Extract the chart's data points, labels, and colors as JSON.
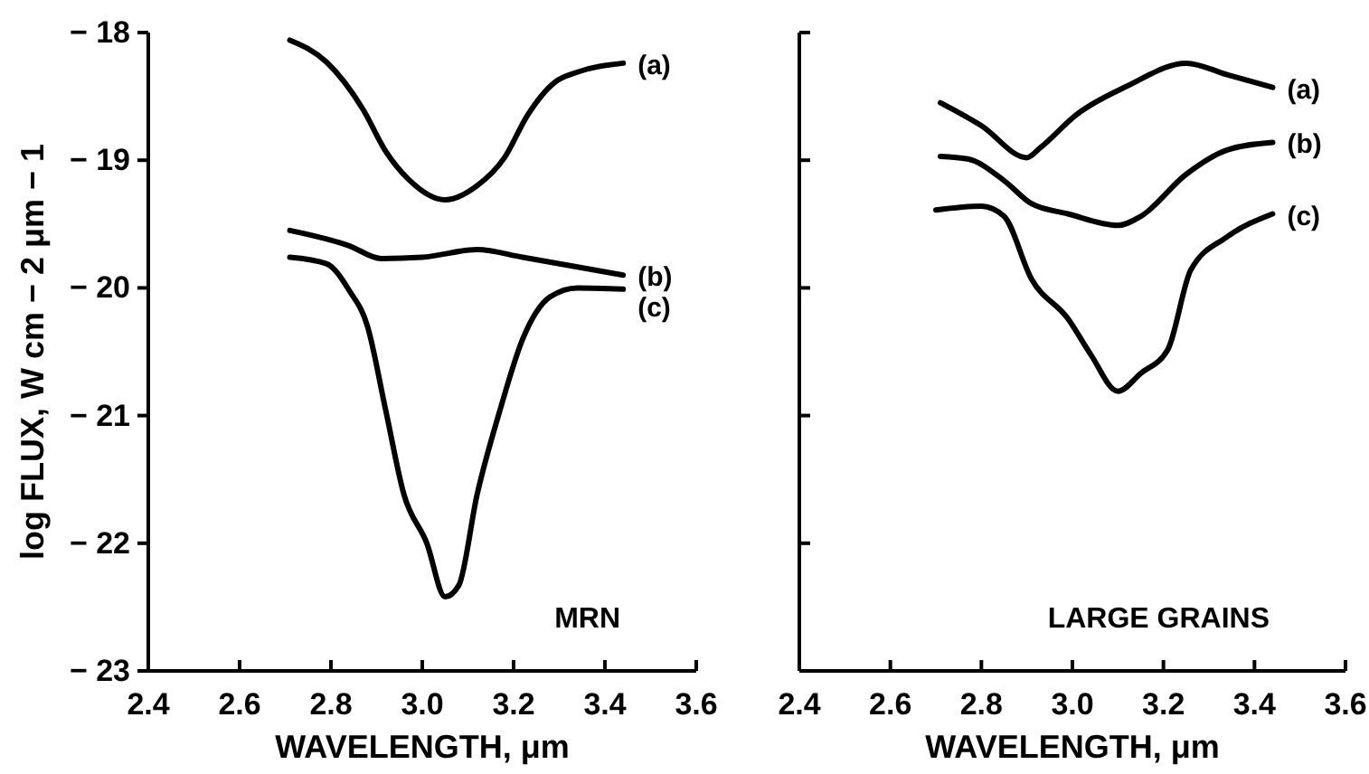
{
  "chart_data": [
    {
      "type": "line",
      "xlabel": "WAVELENGTH, μm",
      "ylabel": "log FLUX, W cm − 2 μm − 1",
      "xlim": [
        2.4,
        3.6
      ],
      "ylim": [
        -23,
        -18
      ],
      "xticks": [
        2.4,
        2.6,
        2.8,
        {
          "value": 3,
          "label": "3.0"
        },
        3.2,
        3.4,
        3.6
      ],
      "yticks": [
        {
          "value": -23,
          "label": "− 23"
        },
        {
          "value": -22,
          "label": "− 22"
        },
        {
          "value": -21,
          "label": "− 21"
        },
        {
          "value": -20,
          "label": "− 20"
        },
        {
          "value": -19,
          "label": "− 19"
        },
        {
          "value": -18,
          "label": "− 18"
        }
      ],
      "annotations": [
        "MRN"
      ],
      "series": [
        {
          "name": "(a)",
          "color": "#000000",
          "x": [
            2.71,
            2.79,
            2.87,
            2.92,
            2.97,
            3.05,
            3.12,
            3.18,
            3.23,
            3.29,
            3.34,
            3.44
          ],
          "values": [
            -18.06,
            -18.23,
            -18.6,
            -18.93,
            -19.15,
            -19.31,
            -19.2,
            -18.98,
            -18.65,
            -18.39,
            -18.31,
            -18.24
          ]
        },
        {
          "name": "(b)",
          "color": "#000000",
          "x": [
            2.71,
            2.84,
            2.91,
            3.0,
            3.12,
            3.22,
            3.44
          ],
          "values": [
            -19.55,
            -19.67,
            -19.77,
            -19.76,
            -19.7,
            -19.76,
            -19.9
          ]
        },
        {
          "name": "(c)",
          "color": "#000000",
          "x": [
            2.71,
            2.79,
            2.84,
            2.88,
            2.92,
            2.96,
            3.01,
            3.05,
            3.08,
            3.12,
            3.17,
            3.22,
            3.28,
            3.34,
            3.44
          ],
          "values": [
            -19.76,
            -19.81,
            -20.02,
            -20.3,
            -20.96,
            -21.62,
            -22.0,
            -22.42,
            -22.33,
            -21.62,
            -20.96,
            -20.4,
            -20.07,
            -20.0,
            -20.01
          ]
        }
      ]
    },
    {
      "type": "line",
      "xlabel": "WAVELENGTH, μm",
      "xlim": [
        2.4,
        3.6
      ],
      "ylim": [
        -23,
        -18
      ],
      "xticks": [
        2.4,
        2.6,
        2.8,
        {
          "value": 3,
          "label": "3.0"
        },
        3.2,
        3.4,
        3.6
      ],
      "yticks": [
        -23,
        -22,
        -21,
        -20,
        -19,
        -18
      ],
      "tick_labels": "x",
      "annotations": [
        "LARGE GRAINS"
      ],
      "series": [
        {
          "name": "(a)",
          "color": "#000000",
          "x": [
            2.71,
            2.8,
            2.9,
            2.93,
            3.01,
            3.12,
            3.25,
            3.34,
            3.44
          ],
          "values": [
            -18.55,
            -18.73,
            -18.98,
            -18.9,
            -18.64,
            -18.42,
            -18.24,
            -18.33,
            -18.43
          ]
        },
        {
          "name": "(b)",
          "color": "#000000",
          "x": [
            2.71,
            2.77,
            2.85,
            2.91,
            2.99,
            3.1,
            3.15,
            3.25,
            3.34,
            3.44
          ],
          "values": [
            -18.97,
            -18.99,
            -19.16,
            -19.34,
            -19.42,
            -19.51,
            -19.44,
            -19.11,
            -18.92,
            -18.86
          ]
        },
        {
          "name": "(c)",
          "color": "#000000",
          "x": [
            2.7,
            2.8,
            2.85,
            2.91,
            2.99,
            3.04,
            3.1,
            3.15,
            3.21,
            3.26,
            3.34,
            3.44
          ],
          "values": [
            -19.39,
            -19.36,
            -19.44,
            -19.93,
            -20.24,
            -20.52,
            -20.81,
            -20.67,
            -20.48,
            -19.86,
            -19.6,
            -19.42
          ]
        }
      ]
    }
  ]
}
